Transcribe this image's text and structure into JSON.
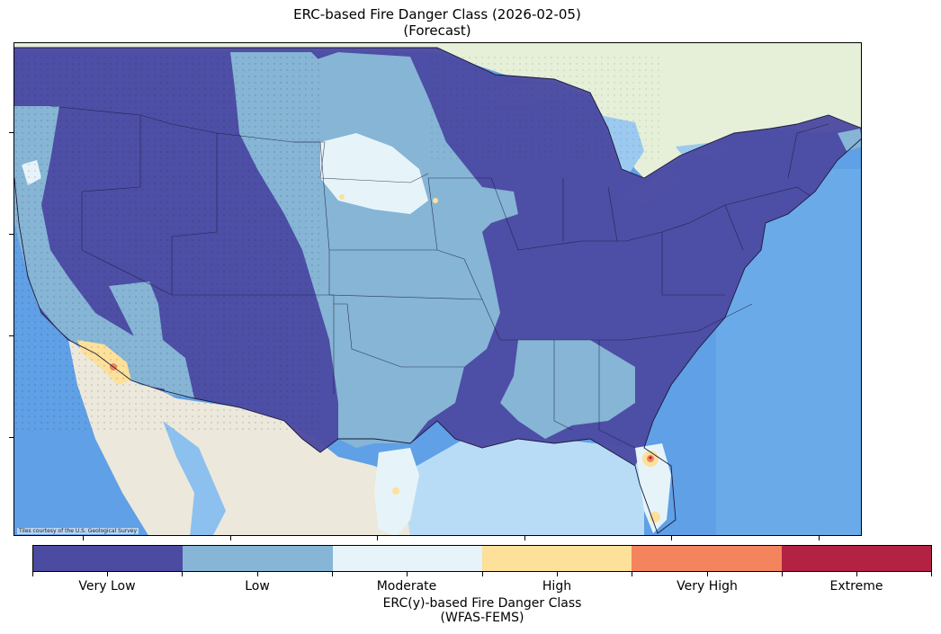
{
  "title": {
    "line1": "ERC-based Fire Danger Class (2026-02-05)",
    "line2": "(Forecast)"
  },
  "map": {
    "region": "Contiguous United States",
    "basemap_credit": "Tiles courtesy of the U.S. Geological Survey",
    "colors": {
      "ocean": "#5fa0e6",
      "land_basemap": "#ece8dc",
      "canada_basemap": "#e6efd8",
      "boundary": "#1a1a3a"
    }
  },
  "legend": {
    "title_line1": "ERC(y)-based Fire Danger Class",
    "title_line2": "(WFAS-FEMS)",
    "classes": [
      {
        "label": "Very Low",
        "color": "#4c4ba2"
      },
      {
        "label": "Low",
        "color": "#86b5d5"
      },
      {
        "label": "Moderate",
        "color": "#e6f4f9"
      },
      {
        "label": "High",
        "color": "#fde09a"
      },
      {
        "label": "Very High",
        "color": "#f3845d"
      },
      {
        "label": "Extreme",
        "color": "#b32243"
      }
    ]
  }
}
